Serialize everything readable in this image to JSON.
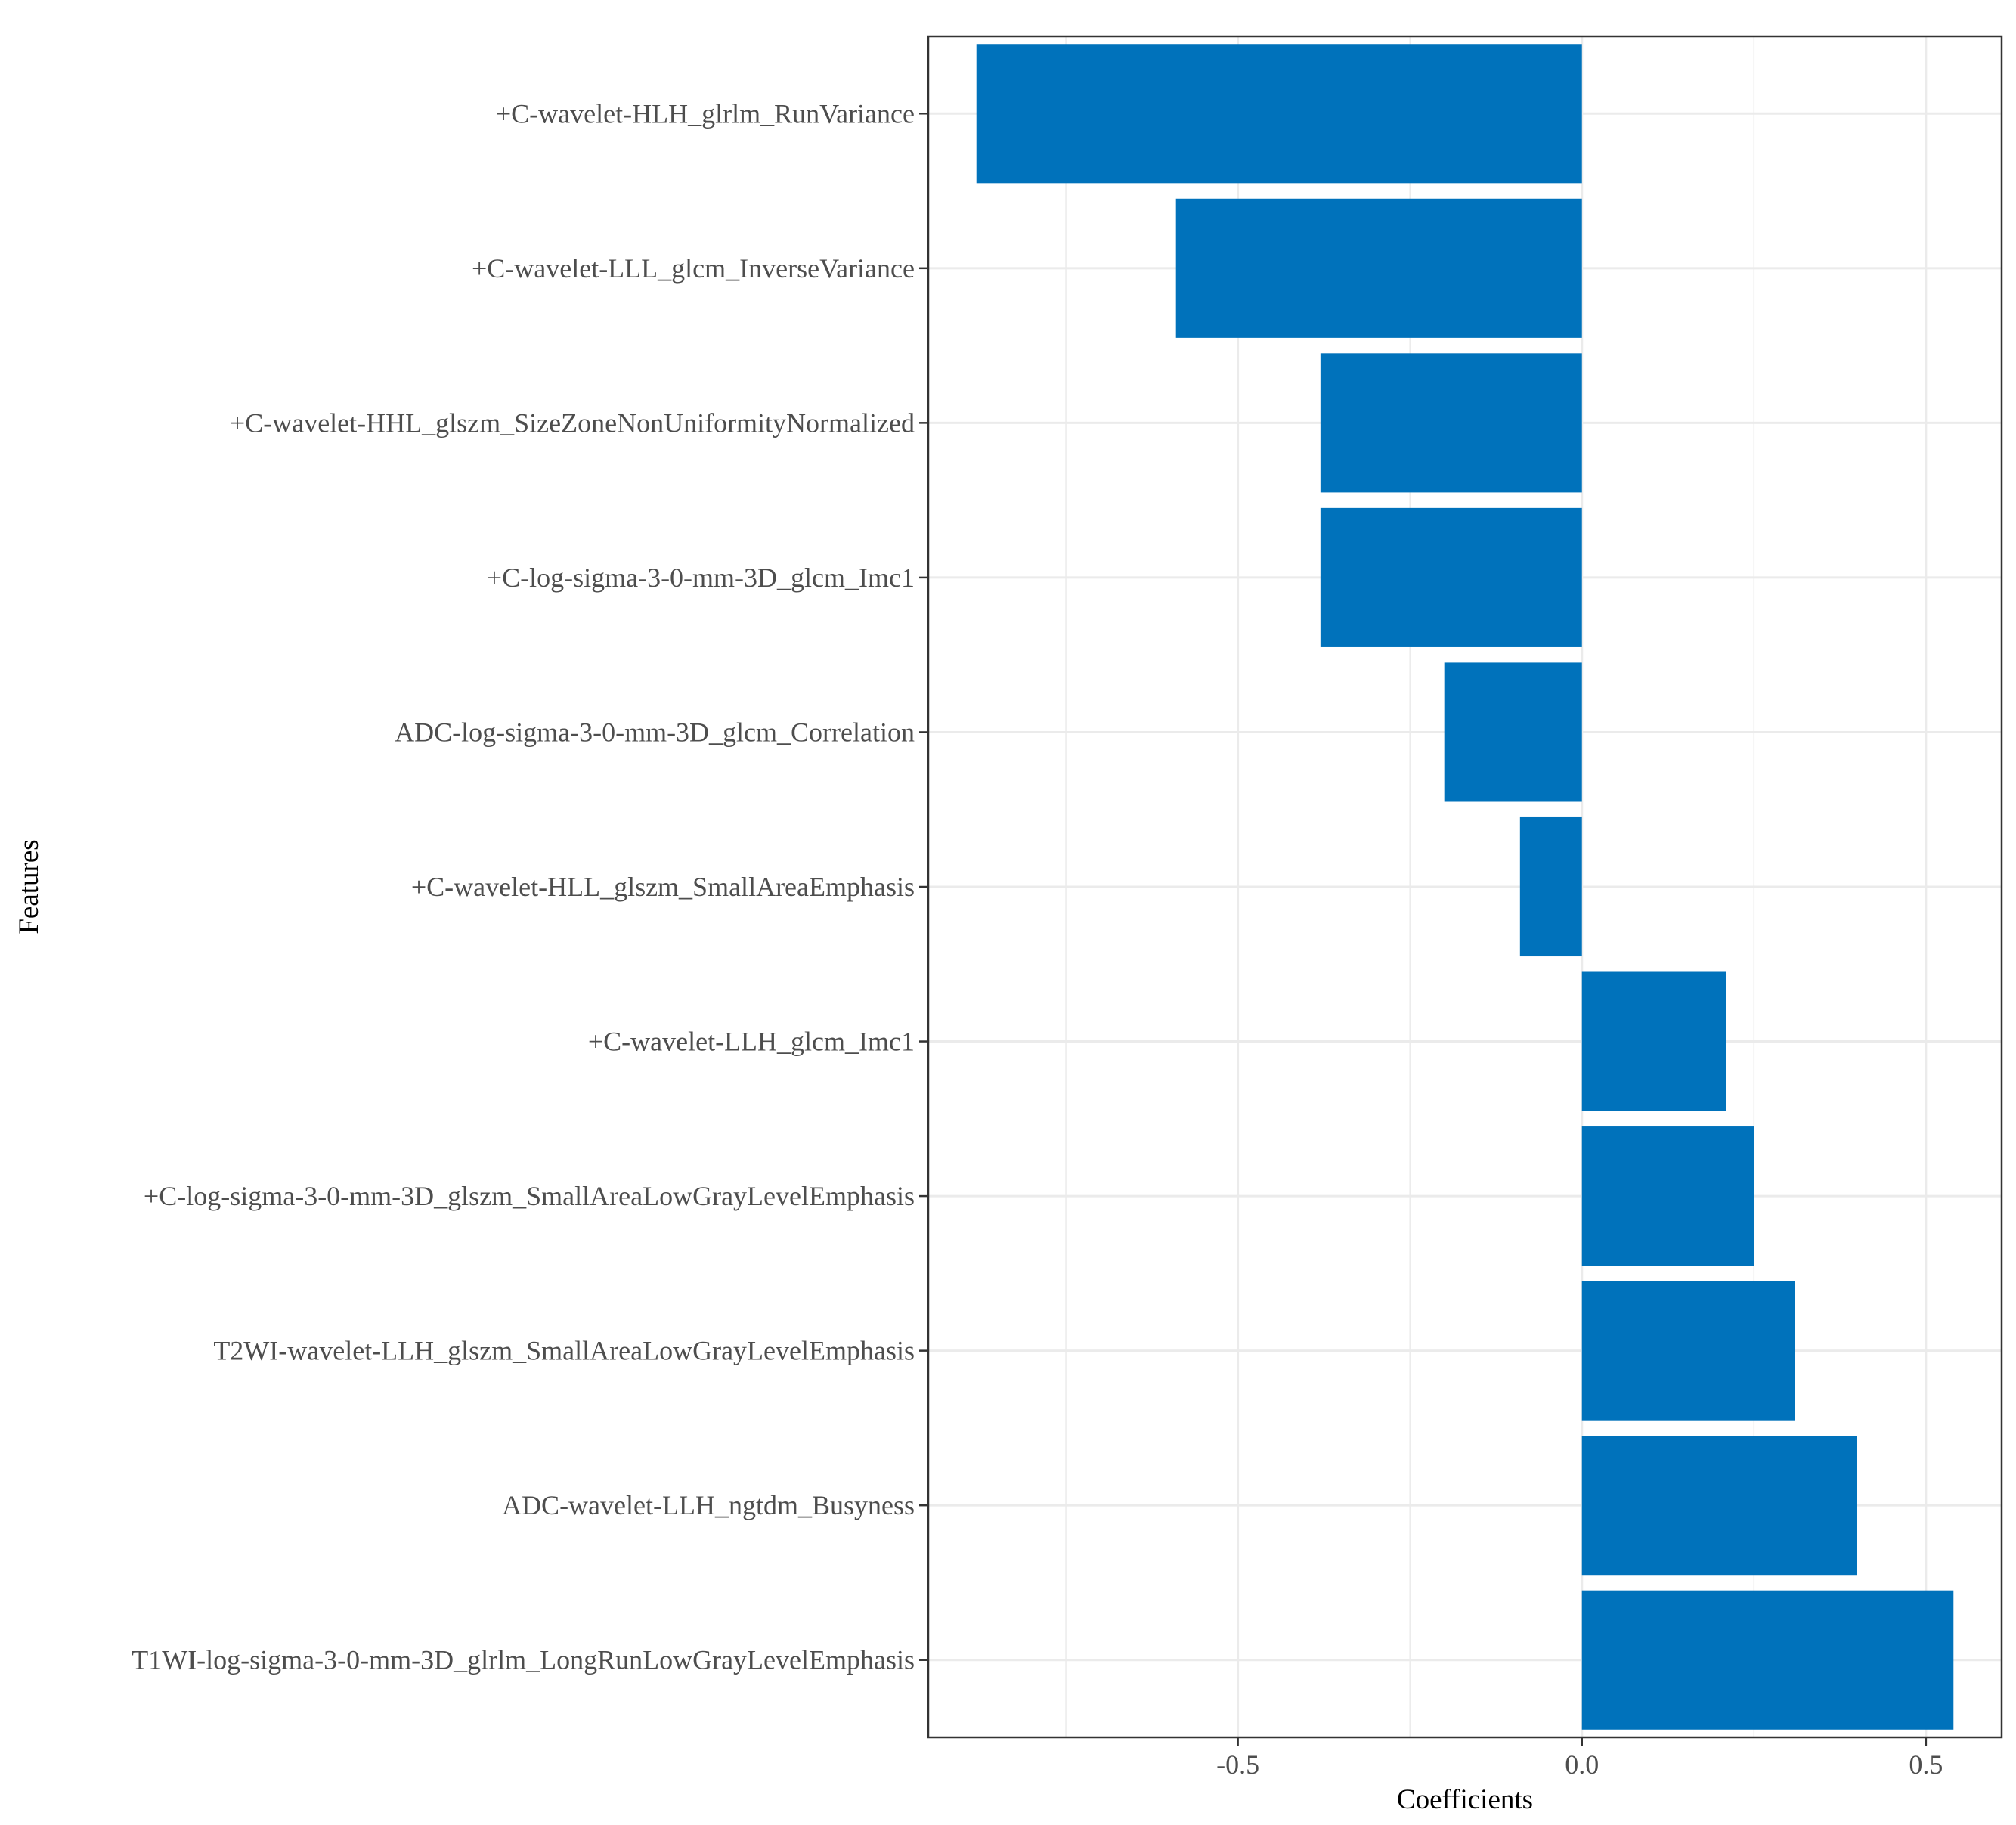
{
  "chart_data": {
    "type": "bar",
    "orientation": "horizontal",
    "categories": [
      "+C-wavelet-HLH_glrlm_RunVariance",
      "+C-wavelet-LLL_glcm_InverseVariance",
      "+C-wavelet-HHL_glszm_SizeZoneNonUniformityNormalized",
      "+C-log-sigma-3-0-mm-3D_glcm_Imc1",
      "ADC-log-sigma-3-0-mm-3D_glcm_Correlation",
      "+C-wavelet-HLL_glszm_SmallAreaEmphasis",
      "+C-wavelet-LLH_glcm_Imc1",
      "+C-log-sigma-3-0-mm-3D_glszm_SmallAreaLowGrayLevelEmphasis",
      "T2WI-wavelet-LLH_glszm_SmallAreaLowGrayLevelEmphasis",
      "ADC-wavelet-LLH_ngtdm_Busyness",
      "T1WI-log-sigma-3-0-mm-3D_glrlm_LongRunLowGrayLevelEmphasis"
    ],
    "values": [
      -0.88,
      -0.59,
      -0.38,
      -0.38,
      -0.2,
      -0.09,
      0.21,
      0.25,
      0.31,
      0.4,
      0.54
    ],
    "xlim": [
      -0.95,
      0.61
    ],
    "xticks": [
      -0.5,
      0.0,
      0.5
    ],
    "xtick_labels": [
      "-0.5",
      "0.0",
      "0.5"
    ],
    "xlabel": "Coefficients",
    "ylabel": "Features",
    "title": "",
    "grid": true,
    "bar_color": "#0072bb"
  }
}
